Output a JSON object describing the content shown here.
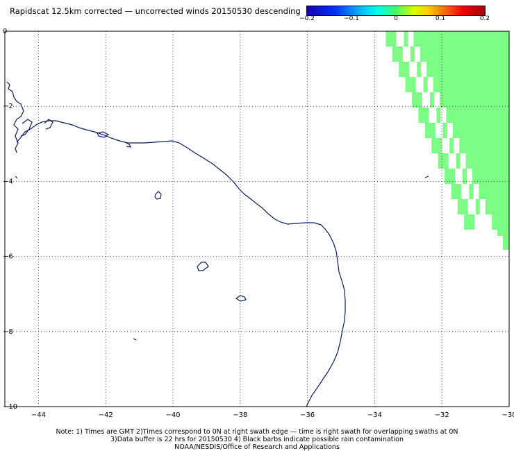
{
  "title": "Rapidscat 12.5km corrected — uncorrected winds 20150530 descending",
  "colorbar": {
    "ticks": [
      {
        "value": -0.2,
        "label": "−0.2"
      },
      {
        "value": -0.1,
        "label": "−0.1"
      },
      {
        "value": 0,
        "label": "0"
      },
      {
        "value": 0.1,
        "label": "0.1"
      },
      {
        "value": 0.2,
        "label": "0.2"
      }
    ],
    "range": [
      -0.2,
      0.2
    ]
  },
  "map": {
    "lon_range": [
      -45,
      -30
    ],
    "lat_range": [
      -10,
      0
    ],
    "x_ticks": [
      {
        "value": -44,
        "label": "−44"
      },
      {
        "value": -42,
        "label": "−42"
      },
      {
        "value": -40,
        "label": "−40"
      },
      {
        "value": -38,
        "label": "−38"
      },
      {
        "value": -36,
        "label": "−36"
      },
      {
        "value": -34,
        "label": "−34"
      },
      {
        "value": -32,
        "label": "−32"
      },
      {
        "value": -30,
        "label": "−30"
      }
    ],
    "y_ticks": [
      {
        "value": 0,
        "label": "0"
      },
      {
        "value": -2,
        "label": "−2"
      },
      {
        "value": -4,
        "label": "−4"
      },
      {
        "value": -6,
        "label": "−6"
      },
      {
        "value": -8,
        "label": "−8"
      },
      {
        "value": -10,
        "label": "−10"
      }
    ],
    "grid": "dotted",
    "swath_color": "#7dfc86",
    "coast_color": "#0a1a5c"
  },
  "notes": [
    "Note: 1) Times are GMT 2)Times correspond to 0N at right swath edge — time is right swath for overlapping swaths at 0N",
    "3)Data buffer is 22 hrs for 20150530 4) Black barbs indicate possible rain contamination",
    "NOAA/NESDIS/Office of Research and Applications"
  ]
}
